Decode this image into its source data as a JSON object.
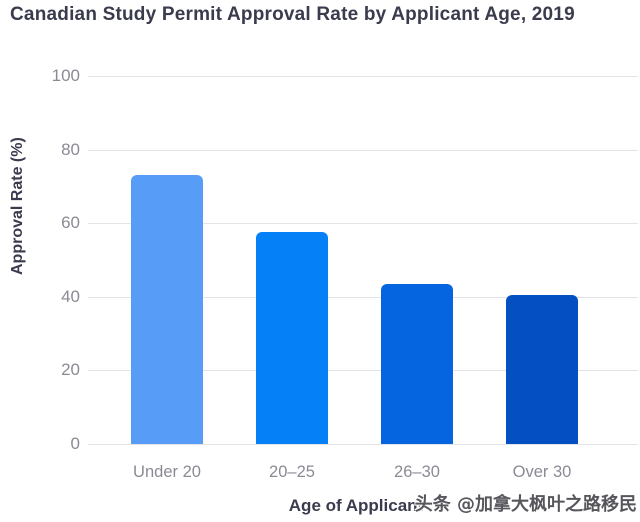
{
  "page": {
    "background_color": "#ffffff",
    "title_color": "#3a3b4d",
    "tick_label_color": "#8a8b94",
    "gridline_color": "#e4e4e8"
  },
  "watermark": {
    "text": "头条 @加拿大枫叶之路移民"
  },
  "chart_data": {
    "type": "bar",
    "title": "Canadian Study Permit Approval Rate by Applicant Age, 2019",
    "xlabel": "Age of Applicant",
    "ylabel": "Approval Rate (%)",
    "categories": [
      "Under 20",
      "20–25",
      "26–30",
      "Over 30"
    ],
    "values": [
      73,
      57.5,
      43.5,
      40.5
    ],
    "bar_colors": [
      "#579df7",
      "#0680f6",
      "#0565e0",
      "#0450c2"
    ],
    "ylim": [
      0,
      100
    ],
    "yticks": [
      0,
      20,
      40,
      60,
      80,
      100
    ],
    "grid": true,
    "legend": "none"
  }
}
